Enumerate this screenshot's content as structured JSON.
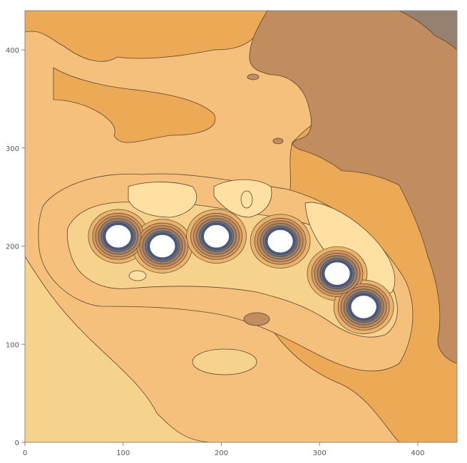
{
  "chart_data": {
    "type": "contour",
    "title": "",
    "xlabel": "",
    "ylabel": "",
    "xlim": [
      0,
      440
    ],
    "ylim": [
      0,
      440
    ],
    "x_ticks": [
      "0",
      "100",
      "200",
      "300",
      "400"
    ],
    "y_ticks": [
      "0",
      "100",
      "200",
      "300",
      "400"
    ],
    "x_tick_values": [
      0,
      100,
      200,
      300,
      400
    ],
    "y_tick_values": [
      0,
      100,
      200,
      300,
      400
    ],
    "grid": false,
    "legend": "none",
    "colormap": [
      "#f7d28c",
      "#f4c07b",
      "#eca956",
      "#d6995f",
      "#c18c60",
      "#96806f",
      "#3a5f9c",
      "#ffffff"
    ],
    "holes": [
      {
        "x": 95,
        "y": 210
      },
      {
        "x": 140,
        "y": 200
      },
      {
        "x": 195,
        "y": 210
      },
      {
        "x": 260,
        "y": 205
      },
      {
        "x": 318,
        "y": 172
      },
      {
        "x": 345,
        "y": 138
      }
    ]
  }
}
